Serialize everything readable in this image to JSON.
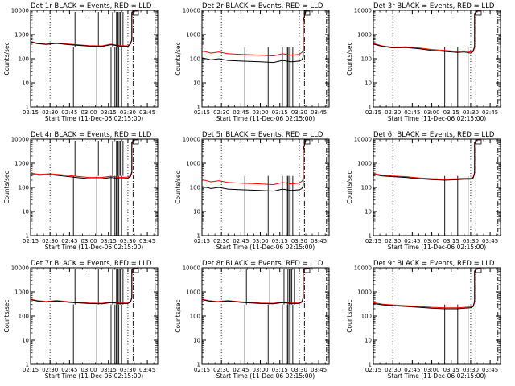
{
  "colors": {
    "events": "#000000",
    "lld": "#ff0000",
    "background": "#ffffff"
  },
  "common": {
    "xlabel": "Start Time (11-Dec-06 02:15:00)",
    "ylabel": "Counts/sec",
    "x_ticks": [
      "02:15",
      "02:30",
      "02:45",
      "03:00",
      "03:15",
      "03:30",
      "03:45"
    ],
    "y_ticks": [
      "1",
      "10",
      "100",
      "1000",
      "10000"
    ],
    "y_scale": "log",
    "ylim": [
      1,
      10000
    ],
    "xlim": [
      "02:15",
      "03:53"
    ],
    "dotted_vertical_lines": [
      "02:30",
      "03:30"
    ],
    "dashdot_vertical_lines": [
      "03:34",
      "03:51"
    ]
  },
  "chart_data": [
    {
      "type": "line",
      "title": "Det 1r BLACK = Events, RED = LLD",
      "spikes": true,
      "dropout_times": [
        "02:48",
        "03:06",
        "03:17",
        "03:20",
        "03:21",
        "03:22",
        "03:23",
        "03:25"
      ],
      "series": [
        {
          "name": "BLACK = Events",
          "x": [
            "02:15",
            "02:20",
            "02:27",
            "02:35",
            "02:45",
            "03:00",
            "03:10",
            "03:17",
            "03:24",
            "03:30",
            "03:32",
            "03:33",
            "03:33",
            "03:35"
          ],
          "values": [
            500,
            420,
            390,
            430,
            380,
            330,
            320,
            380,
            330,
            320,
            400,
            600,
            8000,
            9500
          ]
        },
        {
          "name": "RED = LLD",
          "x": [
            "02:15",
            "02:20",
            "02:27",
            "02:35",
            "02:45",
            "03:00",
            "03:10",
            "03:17",
            "03:24",
            "03:30",
            "03:32",
            "03:33",
            "03:33",
            "03:35"
          ],
          "values": [
            520,
            440,
            400,
            450,
            400,
            350,
            340,
            400,
            350,
            340,
            420,
            650,
            8500,
            10000
          ]
        }
      ]
    },
    {
      "type": "line",
      "title": "Det 2r BLACK = Events, RED = LLD",
      "spikes": false,
      "dropout_times": [
        "02:48",
        "03:06",
        "03:17",
        "03:20",
        "03:21",
        "03:22",
        "03:23",
        "03:25"
      ],
      "series": [
        {
          "name": "BLACK = Events",
          "x": [
            "02:15",
            "02:22",
            "02:28",
            "02:35",
            "02:45",
            "03:00",
            "03:10",
            "03:17",
            "03:24",
            "03:30",
            "03:32",
            "03:33",
            "03:33",
            "03:35"
          ],
          "values": [
            110,
            90,
            100,
            85,
            80,
            75,
            70,
            85,
            75,
            80,
            90,
            120,
            3500,
            9000
          ]
        },
        {
          "name": "RED = LLD",
          "x": [
            "02:15",
            "02:22",
            "02:28",
            "02:35",
            "02:45",
            "03:00",
            "03:10",
            "03:17",
            "03:24",
            "03:30",
            "03:32",
            "03:33",
            "03:33",
            "03:35"
          ],
          "values": [
            210,
            170,
            190,
            160,
            150,
            140,
            130,
            160,
            140,
            150,
            180,
            220,
            4000,
            9500
          ]
        }
      ]
    },
    {
      "type": "line",
      "title": "Det 3r BLACK = Events, RED = LLD",
      "spikes": false,
      "dropout_times": [
        "03:10",
        "03:20",
        "03:28"
      ],
      "series": [
        {
          "name": "BLACK = Events",
          "x": [
            "02:15",
            "02:22",
            "02:30",
            "02:40",
            "02:50",
            "03:00",
            "03:10",
            "03:20",
            "03:25",
            "03:30",
            "03:32",
            "03:33",
            "03:33",
            "03:35"
          ],
          "values": [
            400,
            320,
            280,
            290,
            260,
            220,
            200,
            180,
            190,
            170,
            200,
            300,
            7000,
            9500
          ]
        },
        {
          "name": "RED = LLD",
          "x": [
            "02:15",
            "02:22",
            "02:30",
            "02:40",
            "02:50",
            "03:00",
            "03:10",
            "03:20",
            "03:25",
            "03:30",
            "03:32",
            "03:33",
            "03:33",
            "03:35"
          ],
          "values": [
            430,
            340,
            300,
            310,
            280,
            240,
            220,
            200,
            210,
            190,
            220,
            330,
            7500,
            10000
          ]
        }
      ]
    },
    {
      "type": "line",
      "title": "Det 4r BLACK = Events, RED = LLD",
      "spikes": true,
      "dropout_times": [
        "02:48",
        "03:06",
        "03:17",
        "03:20",
        "03:21",
        "03:22",
        "03:23",
        "03:25"
      ],
      "series": [
        {
          "name": "BLACK = Events",
          "x": [
            "02:15",
            "02:22",
            "02:30",
            "02:40",
            "02:50",
            "03:00",
            "03:10",
            "03:17",
            "03:24",
            "03:30",
            "03:32",
            "03:33",
            "03:33",
            "03:35"
          ],
          "values": [
            350,
            320,
            340,
            300,
            260,
            230,
            230,
            260,
            230,
            240,
            280,
            400,
            7000,
            9500
          ]
        },
        {
          "name": "RED = LLD",
          "x": [
            "02:15",
            "02:22",
            "02:30",
            "02:40",
            "02:50",
            "03:00",
            "03:10",
            "03:17",
            "03:24",
            "03:30",
            "03:32",
            "03:33",
            "03:33",
            "03:35"
          ],
          "values": [
            390,
            350,
            370,
            330,
            290,
            260,
            260,
            290,
            260,
            270,
            310,
            450,
            7500,
            10000
          ]
        }
      ]
    },
    {
      "type": "line",
      "title": "Det 5r BLACK = Events, RED = LLD",
      "spikes": false,
      "dropout_times": [
        "02:48",
        "03:06",
        "03:17",
        "03:20",
        "03:21",
        "03:22",
        "03:23",
        "03:25"
      ],
      "series": [
        {
          "name": "BLACK = Events",
          "x": [
            "02:15",
            "02:22",
            "02:28",
            "02:35",
            "02:45",
            "03:00",
            "03:10",
            "03:17",
            "03:24",
            "03:30",
            "03:32",
            "03:33",
            "03:33",
            "03:35"
          ],
          "values": [
            110,
            90,
            100,
            85,
            80,
            75,
            70,
            85,
            75,
            80,
            90,
            120,
            3500,
            9000
          ]
        },
        {
          "name": "RED = LLD",
          "x": [
            "02:15",
            "02:22",
            "02:28",
            "02:35",
            "02:45",
            "03:00",
            "03:10",
            "03:17",
            "03:24",
            "03:30",
            "03:32",
            "03:33",
            "03:33",
            "03:35"
          ],
          "values": [
            210,
            170,
            190,
            160,
            150,
            140,
            130,
            160,
            140,
            150,
            180,
            220,
            4000,
            9500
          ]
        }
      ]
    },
    {
      "type": "line",
      "title": "Det 6r BLACK = Events, RED = LLD",
      "spikes": false,
      "dropout_times": [
        "03:10",
        "03:20",
        "03:28"
      ],
      "series": [
        {
          "name": "BLACK = Events",
          "x": [
            "02:15",
            "02:22",
            "02:30",
            "02:40",
            "02:50",
            "03:00",
            "03:10",
            "03:20",
            "03:25",
            "03:30",
            "03:32",
            "03:33",
            "03:33",
            "03:35"
          ],
          "values": [
            350,
            300,
            280,
            260,
            230,
            210,
            200,
            210,
            220,
            220,
            250,
            380,
            7000,
            9500
          ]
        },
        {
          "name": "RED = LLD",
          "x": [
            "02:15",
            "02:22",
            "02:30",
            "02:40",
            "02:50",
            "03:00",
            "03:10",
            "03:20",
            "03:25",
            "03:30",
            "03:32",
            "03:33",
            "03:33",
            "03:35"
          ],
          "values": [
            380,
            320,
            300,
            280,
            250,
            230,
            220,
            230,
            240,
            240,
            270,
            420,
            7500,
            10000
          ]
        }
      ]
    },
    {
      "type": "line",
      "title": "Det 7r BLACK = Events, RED = LLD",
      "spikes": true,
      "dropout_times": [
        "02:48",
        "03:06",
        "03:17",
        "03:20",
        "03:21",
        "03:22",
        "03:23",
        "03:25"
      ],
      "series": [
        {
          "name": "BLACK = Events",
          "x": [
            "02:15",
            "02:20",
            "02:27",
            "02:35",
            "02:45",
            "03:00",
            "03:10",
            "03:17",
            "03:24",
            "03:30",
            "03:32",
            "03:33",
            "03:33",
            "03:35"
          ],
          "values": [
            480,
            420,
            380,
            420,
            370,
            330,
            320,
            360,
            330,
            330,
            380,
            550,
            8000,
            9500
          ]
        },
        {
          "name": "RED = LLD",
          "x": [
            "02:15",
            "02:20",
            "02:27",
            "02:35",
            "02:45",
            "03:00",
            "03:10",
            "03:17",
            "03:24",
            "03:30",
            "03:32",
            "03:33",
            "03:33",
            "03:35"
          ],
          "values": [
            500,
            440,
            400,
            440,
            390,
            350,
            340,
            380,
            350,
            350,
            400,
            600,
            8500,
            10000
          ]
        }
      ]
    },
    {
      "type": "line",
      "title": "Det 8r BLACK = Events, RED = LLD",
      "spikes": true,
      "dropout_times": [
        "02:48",
        "03:06",
        "03:17",
        "03:20",
        "03:21",
        "03:22",
        "03:23",
        "03:25"
      ],
      "series": [
        {
          "name": "BLACK = Events",
          "x": [
            "02:15",
            "02:20",
            "02:27",
            "02:35",
            "02:45",
            "03:00",
            "03:10",
            "03:17",
            "03:24",
            "03:30",
            "03:32",
            "03:33",
            "03:33",
            "03:35"
          ],
          "values": [
            480,
            420,
            380,
            420,
            370,
            330,
            320,
            360,
            330,
            330,
            380,
            550,
            8000,
            9500
          ]
        },
        {
          "name": "RED = LLD",
          "x": [
            "02:15",
            "02:20",
            "02:27",
            "02:35",
            "02:45",
            "03:00",
            "03:10",
            "03:17",
            "03:24",
            "03:30",
            "03:32",
            "03:33",
            "03:33",
            "03:35"
          ],
          "values": [
            500,
            440,
            400,
            440,
            390,
            350,
            340,
            380,
            350,
            350,
            400,
            600,
            8500,
            10000
          ]
        }
      ]
    },
    {
      "type": "line",
      "title": "Det 9r BLACK = Events, RED = LLD",
      "spikes": false,
      "dropout_times": [
        "03:10",
        "03:20",
        "03:28"
      ],
      "series": [
        {
          "name": "BLACK = Events",
          "x": [
            "02:15",
            "02:22",
            "02:30",
            "02:40",
            "02:50",
            "03:00",
            "03:10",
            "03:20",
            "03:25",
            "03:30",
            "03:32",
            "03:33",
            "03:33",
            "03:35"
          ],
          "values": [
            330,
            290,
            270,
            250,
            230,
            210,
            200,
            200,
            210,
            220,
            250,
            380,
            7000,
            9500
          ]
        },
        {
          "name": "RED = LLD",
          "x": [
            "02:15",
            "02:22",
            "02:30",
            "02:40",
            "02:50",
            "03:00",
            "03:10",
            "03:20",
            "03:25",
            "03:30",
            "03:32",
            "03:33",
            "03:33",
            "03:35"
          ],
          "values": [
            360,
            310,
            290,
            270,
            250,
            230,
            220,
            220,
            230,
            240,
            270,
            420,
            7500,
            10000
          ]
        }
      ]
    }
  ]
}
